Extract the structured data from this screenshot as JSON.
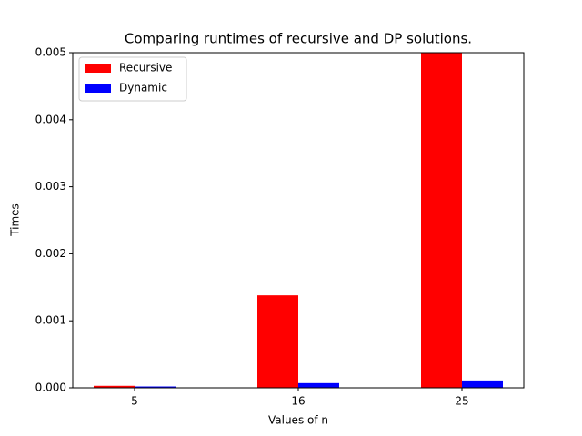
{
  "chart_data": {
    "type": "bar",
    "title": "Comparing runtimes of recursive and DP solutions.",
    "x_label": "Values of n",
    "y_label": "Times",
    "categories": [
      "5",
      "16",
      "25"
    ],
    "series": [
      {
        "name": "Recursive",
        "color": "#ff0000",
        "values": [
          3e-05,
          0.00138,
          0.005
        ]
      },
      {
        "name": "Dynamic",
        "color": "#0000ff",
        "values": [
          2e-05,
          7e-05,
          0.00011
        ]
      }
    ],
    "ylim": [
      0,
      0.005
    ],
    "yticks": [
      {
        "value": 0,
        "label": "0.000"
      },
      {
        "value": 0.001,
        "label": "0.001"
      },
      {
        "value": 0.002,
        "label": "0.002"
      },
      {
        "value": 0.003,
        "label": "0.003"
      },
      {
        "value": 0.004,
        "label": "0.004"
      },
      {
        "value": 0.005,
        "label": "0.005"
      }
    ],
    "legend": "upper left"
  }
}
